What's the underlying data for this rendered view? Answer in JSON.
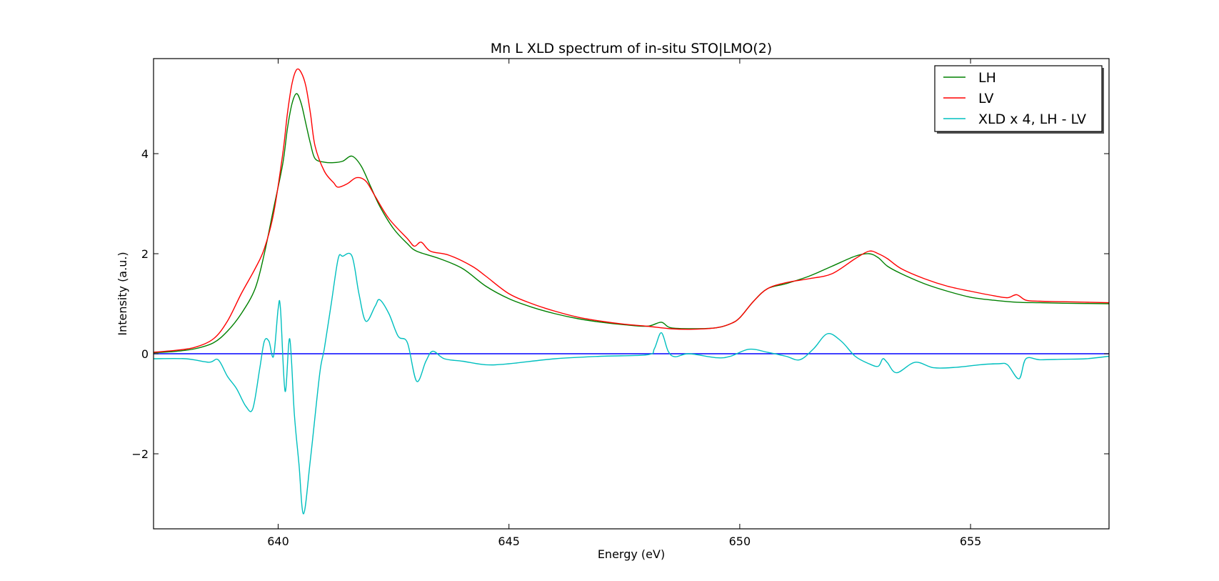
{
  "chart_data": {
    "type": "line",
    "title": "Mn L XLD spectrum of in-situ STO|LMO(2)",
    "xlabel": "Energy (eV)",
    "ylabel": "Intensity (a.u.)",
    "xlim": [
      637.3,
      658.0
    ],
    "ylim": [
      -3.5,
      5.9
    ],
    "xticks": [
      640,
      645,
      650,
      655
    ],
    "yticks": [
      -2,
      0,
      2,
      4
    ],
    "ytick_labels": [
      "−2",
      "0",
      "2",
      "4"
    ],
    "legend": {
      "placement": "upper right"
    },
    "series": [
      {
        "name": "LH",
        "color": "#008000",
        "points": [
          [
            637.3,
            0.02
          ],
          [
            637.8,
            0.05
          ],
          [
            638.2,
            0.1
          ],
          [
            638.6,
            0.22
          ],
          [
            638.9,
            0.45
          ],
          [
            639.2,
            0.8
          ],
          [
            639.5,
            1.3
          ],
          [
            639.7,
            2.0
          ],
          [
            639.9,
            2.9
          ],
          [
            640.1,
            3.8
          ],
          [
            640.2,
            4.5
          ],
          [
            640.3,
            5.0
          ],
          [
            640.4,
            5.2
          ],
          [
            640.5,
            5.0
          ],
          [
            640.6,
            4.6
          ],
          [
            640.7,
            4.2
          ],
          [
            640.8,
            3.9
          ],
          [
            641.0,
            3.83
          ],
          [
            641.2,
            3.82
          ],
          [
            641.4,
            3.85
          ],
          [
            641.6,
            3.95
          ],
          [
            641.8,
            3.75
          ],
          [
            642.0,
            3.35
          ],
          [
            642.2,
            2.95
          ],
          [
            642.5,
            2.5
          ],
          [
            642.8,
            2.2
          ],
          [
            643.0,
            2.05
          ],
          [
            643.5,
            1.9
          ],
          [
            644.0,
            1.7
          ],
          [
            644.5,
            1.35
          ],
          [
            645.0,
            1.1
          ],
          [
            645.5,
            0.93
          ],
          [
            646.0,
            0.8
          ],
          [
            646.5,
            0.7
          ],
          [
            647.0,
            0.63
          ],
          [
            647.5,
            0.58
          ],
          [
            648.0,
            0.55
          ],
          [
            648.3,
            0.63
          ],
          [
            648.5,
            0.52
          ],
          [
            649.0,
            0.5
          ],
          [
            649.5,
            0.52
          ],
          [
            649.8,
            0.6
          ],
          [
            650.0,
            0.72
          ],
          [
            650.3,
            1.05
          ],
          [
            650.6,
            1.3
          ],
          [
            651.0,
            1.4
          ],
          [
            651.5,
            1.55
          ],
          [
            652.0,
            1.75
          ],
          [
            652.5,
            1.95
          ],
          [
            652.8,
            2.0
          ],
          [
            653.0,
            1.92
          ],
          [
            653.2,
            1.75
          ],
          [
            653.5,
            1.6
          ],
          [
            654.0,
            1.4
          ],
          [
            654.5,
            1.25
          ],
          [
            655.0,
            1.13
          ],
          [
            655.5,
            1.07
          ],
          [
            656.0,
            1.03
          ],
          [
            656.5,
            1.02
          ],
          [
            657.0,
            1.01
          ],
          [
            658.0,
            1.0
          ]
        ]
      },
      {
        "name": "LV",
        "color": "#ff0000",
        "points": [
          [
            637.3,
            0.03
          ],
          [
            637.8,
            0.07
          ],
          [
            638.2,
            0.13
          ],
          [
            638.6,
            0.3
          ],
          [
            638.9,
            0.65
          ],
          [
            639.2,
            1.2
          ],
          [
            639.5,
            1.7
          ],
          [
            639.7,
            2.1
          ],
          [
            639.9,
            2.8
          ],
          [
            640.1,
            4.0
          ],
          [
            640.2,
            4.8
          ],
          [
            640.3,
            5.4
          ],
          [
            640.4,
            5.68
          ],
          [
            640.5,
            5.62
          ],
          [
            640.6,
            5.35
          ],
          [
            640.7,
            4.8
          ],
          [
            640.8,
            4.15
          ],
          [
            641.0,
            3.65
          ],
          [
            641.2,
            3.42
          ],
          [
            641.3,
            3.33
          ],
          [
            641.5,
            3.4
          ],
          [
            641.7,
            3.52
          ],
          [
            641.9,
            3.45
          ],
          [
            642.1,
            3.15
          ],
          [
            642.4,
            2.7
          ],
          [
            642.8,
            2.3
          ],
          [
            642.95,
            2.15
          ],
          [
            643.1,
            2.23
          ],
          [
            643.3,
            2.05
          ],
          [
            643.7,
            1.97
          ],
          [
            644.2,
            1.75
          ],
          [
            644.5,
            1.55
          ],
          [
            645.0,
            1.2
          ],
          [
            645.5,
            1.0
          ],
          [
            646.0,
            0.85
          ],
          [
            646.5,
            0.73
          ],
          [
            647.0,
            0.65
          ],
          [
            647.5,
            0.59
          ],
          [
            648.0,
            0.55
          ],
          [
            648.5,
            0.5
          ],
          [
            649.0,
            0.49
          ],
          [
            649.5,
            0.52
          ],
          [
            649.8,
            0.6
          ],
          [
            650.0,
            0.72
          ],
          [
            650.3,
            1.05
          ],
          [
            650.6,
            1.3
          ],
          [
            651.0,
            1.42
          ],
          [
            651.5,
            1.5
          ],
          [
            652.0,
            1.6
          ],
          [
            652.5,
            1.9
          ],
          [
            652.8,
            2.05
          ],
          [
            653.0,
            2.0
          ],
          [
            653.2,
            1.9
          ],
          [
            653.5,
            1.7
          ],
          [
            654.0,
            1.5
          ],
          [
            654.5,
            1.35
          ],
          [
            655.0,
            1.25
          ],
          [
            655.5,
            1.16
          ],
          [
            655.8,
            1.12
          ],
          [
            656.0,
            1.18
          ],
          [
            656.2,
            1.07
          ],
          [
            656.5,
            1.05
          ],
          [
            657.0,
            1.04
          ],
          [
            658.0,
            1.02
          ]
        ]
      },
      {
        "name": "XLD x 4, LH - LV",
        "color": "#00bfbf",
        "points": [
          [
            637.3,
            -0.1
          ],
          [
            638.0,
            -0.1
          ],
          [
            638.5,
            -0.17
          ],
          [
            638.7,
            -0.12
          ],
          [
            638.9,
            -0.45
          ],
          [
            639.1,
            -0.7
          ],
          [
            639.3,
            -1.05
          ],
          [
            639.45,
            -1.1
          ],
          [
            639.6,
            -0.3
          ],
          [
            639.7,
            0.25
          ],
          [
            639.8,
            0.25
          ],
          [
            639.9,
            -0.05
          ],
          [
            640.0,
            0.9
          ],
          [
            640.05,
            0.9
          ],
          [
            640.15,
            -0.75
          ],
          [
            640.25,
            0.3
          ],
          [
            640.35,
            -1.2
          ],
          [
            640.45,
            -2.2
          ],
          [
            640.55,
            -3.2
          ],
          [
            640.7,
            -2.1
          ],
          [
            640.9,
            -0.4
          ],
          [
            641.0,
            0.1
          ],
          [
            641.15,
            1.0
          ],
          [
            641.3,
            1.9
          ],
          [
            641.4,
            1.95
          ],
          [
            641.6,
            1.95
          ],
          [
            641.75,
            1.2
          ],
          [
            641.9,
            0.65
          ],
          [
            642.1,
            0.95
          ],
          [
            642.2,
            1.08
          ],
          [
            642.4,
            0.8
          ],
          [
            642.6,
            0.35
          ],
          [
            642.8,
            0.22
          ],
          [
            643.0,
            -0.55
          ],
          [
            643.2,
            -0.15
          ],
          [
            643.35,
            0.05
          ],
          [
            643.6,
            -0.1
          ],
          [
            644.0,
            -0.15
          ],
          [
            644.5,
            -0.22
          ],
          [
            645.0,
            -0.2
          ],
          [
            646.0,
            -0.1
          ],
          [
            647.0,
            -0.05
          ],
          [
            648.0,
            -0.02
          ],
          [
            648.15,
            0.1
          ],
          [
            648.3,
            0.42
          ],
          [
            648.45,
            0.05
          ],
          [
            648.6,
            -0.06
          ],
          [
            648.9,
            0.0
          ],
          [
            649.5,
            -0.08
          ],
          [
            649.8,
            -0.05
          ],
          [
            650.2,
            0.09
          ],
          [
            650.6,
            0.03
          ],
          [
            651.0,
            -0.05
          ],
          [
            651.3,
            -0.12
          ],
          [
            651.6,
            0.1
          ],
          [
            651.9,
            0.4
          ],
          [
            652.2,
            0.25
          ],
          [
            652.5,
            -0.05
          ],
          [
            652.8,
            -0.2
          ],
          [
            653.0,
            -0.25
          ],
          [
            653.1,
            -0.1
          ],
          [
            653.2,
            -0.18
          ],
          [
            653.4,
            -0.38
          ],
          [
            653.8,
            -0.17
          ],
          [
            654.2,
            -0.28
          ],
          [
            654.7,
            -0.27
          ],
          [
            655.2,
            -0.22
          ],
          [
            655.6,
            -0.2
          ],
          [
            655.8,
            -0.22
          ],
          [
            656.05,
            -0.5
          ],
          [
            656.2,
            -0.1
          ],
          [
            656.5,
            -0.12
          ],
          [
            657.0,
            -0.11
          ],
          [
            657.5,
            -0.1
          ],
          [
            658.0,
            -0.05
          ]
        ]
      }
    ],
    "reference_line": {
      "y": 0,
      "color": "#0000ff"
    }
  }
}
